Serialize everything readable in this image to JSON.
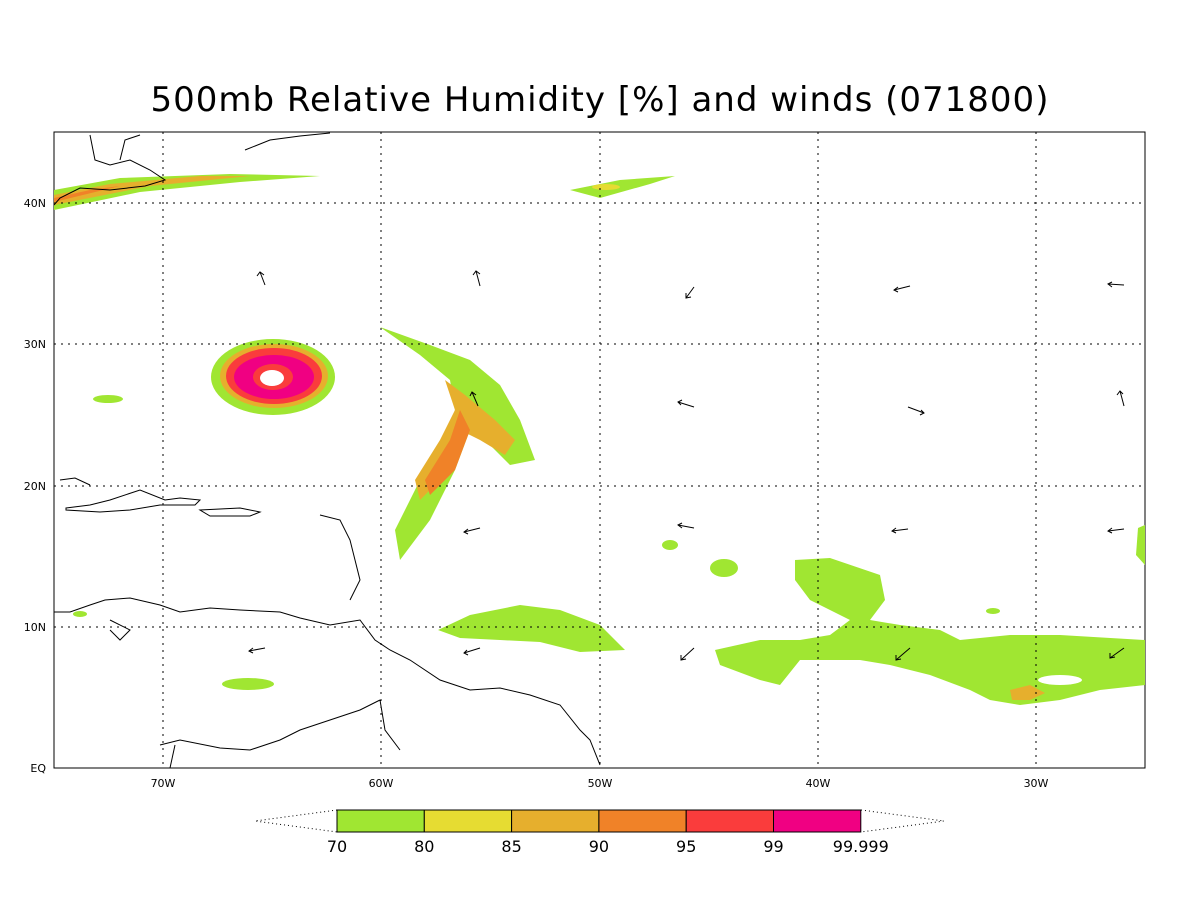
{
  "title": "500mb Relative Humidity [%] and winds (071800)",
  "map": {
    "lat_labels": [
      "40N",
      "30N",
      "20N",
      "10N",
      "EQ"
    ],
    "lon_labels": [
      "70W",
      "60W",
      "50W",
      "40W",
      "30W"
    ],
    "lat_values": [
      40,
      30,
      20,
      10,
      0
    ],
    "lon_values": [
      -70,
      -60,
      -50,
      -40,
      -30
    ],
    "lon_range": [
      -75,
      -25
    ],
    "lat_range": [
      0,
      45
    ],
    "grid": "dotted"
  },
  "colorbar": {
    "labels": [
      "70",
      "80",
      "85",
      "90",
      "95",
      "99",
      "99.999"
    ],
    "colors": [
      "#a0e632",
      "#e6dc32",
      "#e6af2d",
      "#f08228",
      "#fa3c3c",
      "#f00082"
    ]
  }
}
